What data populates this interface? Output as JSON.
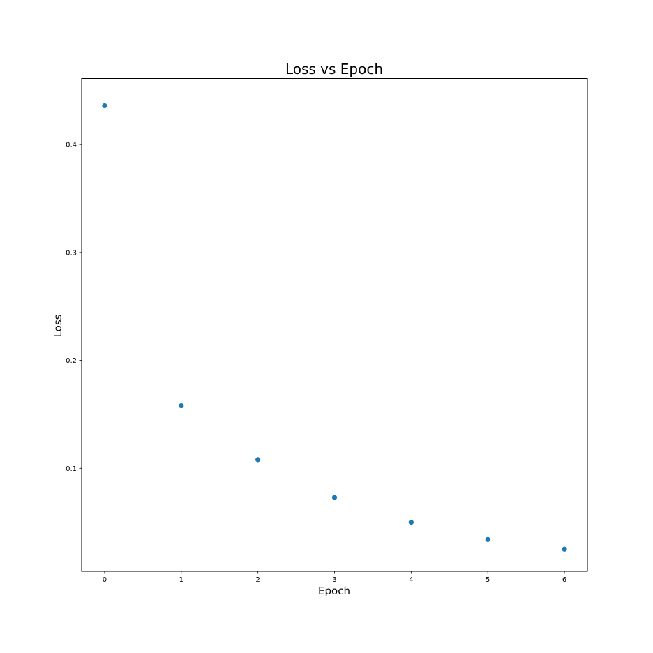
{
  "chart_data": {
    "type": "scatter",
    "title": "Loss vs Epoch",
    "xlabel": "Epoch",
    "ylabel": "Loss",
    "x": [
      0,
      1,
      2,
      3,
      4,
      5,
      6
    ],
    "y": [
      0.436,
      0.158,
      0.108,
      0.073,
      0.05,
      0.034,
      0.025
    ],
    "xlim": [
      -0.3,
      6.3
    ],
    "ylim": [
      0.0045,
      0.4612
    ],
    "xticks": [
      0,
      1,
      2,
      3,
      4,
      5,
      6
    ],
    "xtick_labels": [
      "0",
      "1",
      "2",
      "3",
      "4",
      "5",
      "6"
    ],
    "yticks": [
      0.1,
      0.2,
      0.3,
      0.4
    ],
    "ytick_labels": [
      "0.1",
      "0.2",
      "0.3",
      "0.4"
    ],
    "grid": false,
    "legend": "none",
    "marker_color": "#1f77b4"
  }
}
